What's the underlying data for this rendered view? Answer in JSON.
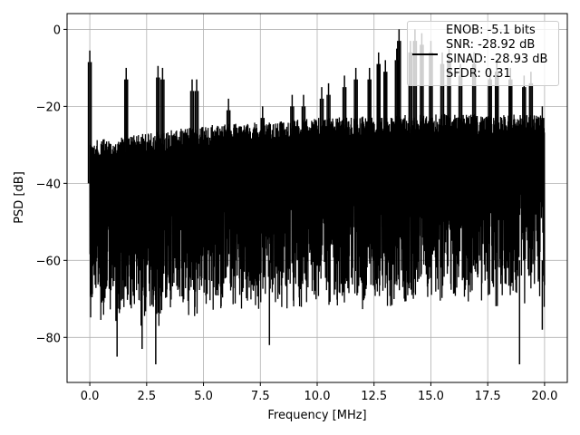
{
  "chart_data": {
    "type": "line",
    "title": "",
    "xlabel": "Frequency [MHz]",
    "ylabel": "PSD [dB]",
    "xlim": [
      -1.0,
      21.0
    ],
    "ylim": [
      -91.7,
      4.1
    ],
    "grid": true,
    "xticks": [
      "0.0",
      "2.5",
      "5.0",
      "7.5",
      "10.0",
      "12.5",
      "15.0",
      "17.5",
      "20.0"
    ],
    "xtick_values": [
      0,
      2.5,
      5,
      7.5,
      10,
      12.5,
      15,
      17.5,
      20
    ],
    "yticks": [
      "0",
      "−20",
      "−40",
      "−60",
      "−80"
    ],
    "ytick_values": [
      0,
      -20,
      -40,
      -60,
      -80
    ],
    "series": [
      {
        "name": "PSD",
        "color": "#000000",
        "x_range_mhz": [
          0,
          20
        ],
        "noise_floor_upper": {
          "x": [
            0,
            5,
            10,
            15,
            20
          ],
          "y": [
            -29,
            -25,
            -23,
            -22,
            -22
          ]
        },
        "noise_floor_lower_typical": -65,
        "deep_dips": [
          {
            "x": 1.2,
            "y": -85
          },
          {
            "x": 2.9,
            "y": -87
          },
          {
            "x": 7.9,
            "y": -82
          },
          {
            "x": 18.9,
            "y": -87
          },
          {
            "x": 19.9,
            "y": -78
          },
          {
            "x": 2.3,
            "y": -83
          }
        ],
        "spurs": [
          {
            "x": 0.0,
            "y": -5.5
          },
          {
            "x": 1.6,
            "y": -10
          },
          {
            "x": 3.0,
            "y": -9.5
          },
          {
            "x": 3.2,
            "y": -10
          },
          {
            "x": 4.5,
            "y": -13
          },
          {
            "x": 4.7,
            "y": -13
          },
          {
            "x": 6.1,
            "y": -18
          },
          {
            "x": 7.6,
            "y": -20
          },
          {
            "x": 8.9,
            "y": -17
          },
          {
            "x": 9.4,
            "y": -17
          },
          {
            "x": 10.2,
            "y": -15
          },
          {
            "x": 10.5,
            "y": -14
          },
          {
            "x": 11.2,
            "y": -12
          },
          {
            "x": 11.7,
            "y": -10
          },
          {
            "x": 12.3,
            "y": -10
          },
          {
            "x": 12.7,
            "y": -6
          },
          {
            "x": 13.0,
            "y": -8
          },
          {
            "x": 13.5,
            "y": -5
          },
          {
            "x": 13.6,
            "y": 0
          },
          {
            "x": 14.1,
            "y": -3
          },
          {
            "x": 14.3,
            "y": 0
          },
          {
            "x": 14.6,
            "y": -1
          },
          {
            "x": 15.0,
            "y": -3
          },
          {
            "x": 15.5,
            "y": -6
          },
          {
            "x": 15.8,
            "y": -5
          },
          {
            "x": 16.3,
            "y": -9
          },
          {
            "x": 16.9,
            "y": -6
          },
          {
            "x": 17.6,
            "y": -10
          },
          {
            "x": 17.9,
            "y": -8
          },
          {
            "x": 18.5,
            "y": -10
          },
          {
            "x": 19.1,
            "y": -12
          },
          {
            "x": 19.4,
            "y": -11
          },
          {
            "x": 19.9,
            "y": -20
          }
        ]
      }
    ],
    "legend": {
      "placement": "top-right",
      "entries": [
        "ENOB: -5.1 bits",
        "SNR: -28.92 dB",
        "SINAD: -28.93 dB",
        "SFDR: 0.31"
      ]
    }
  }
}
